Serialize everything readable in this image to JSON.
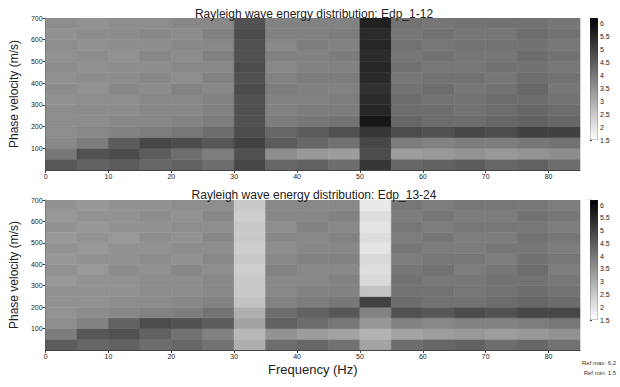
{
  "chart_data": [
    {
      "type": "heatmap",
      "title": "Rayleigh wave energy distribution: Edp_1-12",
      "ylabel": "Phase velocity (m/s)",
      "x_bins": [
        0,
        5,
        10,
        15,
        20,
        25,
        30,
        35,
        40,
        45,
        50,
        55,
        60,
        65,
        70,
        75,
        80,
        85
      ],
      "y_bins": [
        0,
        50,
        100,
        150,
        200,
        250,
        300,
        350,
        400,
        450,
        500,
        550,
        600,
        650,
        700
      ],
      "cells": [
        [
          4.6,
          4.4,
          4.5,
          4.3,
          4.4,
          4.2,
          4.9,
          4.3,
          4.4,
          4.2,
          5.2,
          4.3,
          4.4,
          4.5,
          4.3,
          4.4,
          4.2
        ],
        [
          4.0,
          4.7,
          4.8,
          4.5,
          4.2,
          3.9,
          4.7,
          3.6,
          3.4,
          3.3,
          4.8,
          3.3,
          3.4,
          3.5,
          3.4,
          3.5,
          3.6
        ],
        [
          3.7,
          3.9,
          4.5,
          4.9,
          4.8,
          4.6,
          5.0,
          4.5,
          4.3,
          4.1,
          4.9,
          3.9,
          3.8,
          3.9,
          3.9,
          4.0,
          4.1
        ],
        [
          3.6,
          3.7,
          3.8,
          3.9,
          4.0,
          4.2,
          4.8,
          4.3,
          4.5,
          4.7,
          5.2,
          4.8,
          4.7,
          4.9,
          4.8,
          5.0,
          5.0
        ],
        [
          3.6,
          3.6,
          3.7,
          3.7,
          3.8,
          3.9,
          4.7,
          3.9,
          4.0,
          4.1,
          5.8,
          4.3,
          4.2,
          4.2,
          4.3,
          4.4,
          4.3
        ],
        [
          3.6,
          3.6,
          3.6,
          3.7,
          3.7,
          3.8,
          4.7,
          3.8,
          3.9,
          3.9,
          5.5,
          4.2,
          4.2,
          4.1,
          4.2,
          4.3,
          4.2
        ],
        [
          3.5,
          3.6,
          3.6,
          3.7,
          3.7,
          3.8,
          4.7,
          3.8,
          3.8,
          3.9,
          5.4,
          4.2,
          4.1,
          4.1,
          4.2,
          4.2,
          4.1
        ],
        [
          3.6,
          3.5,
          3.7,
          3.6,
          3.8,
          3.7,
          4.8,
          3.9,
          3.8,
          3.8,
          5.3,
          4.1,
          4.2,
          4.0,
          4.1,
          4.3,
          4.0
        ],
        [
          3.5,
          3.6,
          3.6,
          3.7,
          3.6,
          3.8,
          4.7,
          3.8,
          3.9,
          3.9,
          5.4,
          4.0,
          4.1,
          4.1,
          4.0,
          4.2,
          4.1
        ],
        [
          3.6,
          3.5,
          3.6,
          3.6,
          3.7,
          3.7,
          4.8,
          3.7,
          3.8,
          3.8,
          5.5,
          4.1,
          4.0,
          4.0,
          4.1,
          4.1,
          4.0
        ],
        [
          3.5,
          3.6,
          3.5,
          3.7,
          3.6,
          3.8,
          4.7,
          3.8,
          3.8,
          3.9,
          5.4,
          4.0,
          4.1,
          4.0,
          4.0,
          4.2,
          4.1
        ],
        [
          3.6,
          3.5,
          3.6,
          3.6,
          3.7,
          3.7,
          4.7,
          3.7,
          3.9,
          3.8,
          5.5,
          4.1,
          4.0,
          4.1,
          4.1,
          4.1,
          4.0
        ],
        [
          3.5,
          3.6,
          3.6,
          3.7,
          3.6,
          3.8,
          4.8,
          3.8,
          3.8,
          3.9,
          5.4,
          4.0,
          4.1,
          4.0,
          4.0,
          4.2,
          4.1
        ],
        [
          3.6,
          3.5,
          3.6,
          3.6,
          3.7,
          3.7,
          4.7,
          3.8,
          3.8,
          3.8,
          5.6,
          4.1,
          4.0,
          4.1,
          4.1,
          4.1,
          4.0
        ]
      ],
      "xlim": [
        0,
        85
      ],
      "xticks": [
        0,
        10,
        20,
        30,
        40,
        50,
        60,
        70,
        80
      ],
      "ylim": [
        0,
        700
      ],
      "yticks": [
        100,
        200,
        300,
        400,
        500,
        600,
        700
      ],
      "colorbar_range": [
        1.5,
        6.2
      ],
      "colorbar_ticks": [
        1.5,
        2,
        2.5,
        3,
        3.5,
        4,
        4.5,
        5,
        5.5,
        6
      ],
      "grid": false
    },
    {
      "type": "heatmap",
      "title": "Rayleigh wave energy distribution: Edp_13-24",
      "xlabel": "Frequency (Hz)",
      "ylabel": "Phase velocity (m/s)",
      "x_bins": [
        0,
        5,
        10,
        15,
        20,
        25,
        30,
        35,
        40,
        45,
        50,
        55,
        60,
        65,
        70,
        75,
        80,
        85
      ],
      "y_bins": [
        0,
        50,
        100,
        150,
        200,
        250,
        300,
        350,
        400,
        450,
        500,
        550,
        600,
        650,
        700
      ],
      "cells": [
        [
          4.5,
          4.3,
          4.4,
          4.2,
          4.3,
          4.1,
          3.0,
          4.2,
          4.3,
          4.1,
          3.2,
          4.2,
          4.3,
          4.4,
          4.2,
          4.3,
          4.1
        ],
        [
          3.9,
          4.6,
          4.7,
          4.4,
          4.1,
          3.8,
          2.8,
          3.5,
          3.3,
          3.2,
          2.9,
          3.2,
          3.3,
          3.4,
          3.3,
          3.4,
          3.5
        ],
        [
          3.6,
          3.8,
          4.4,
          4.8,
          4.7,
          4.5,
          3.2,
          4.4,
          4.2,
          4.0,
          3.4,
          3.8,
          3.7,
          3.8,
          3.8,
          3.9,
          4.0
        ],
        [
          3.5,
          3.6,
          3.7,
          3.8,
          3.9,
          4.1,
          3.0,
          4.2,
          4.4,
          4.6,
          3.8,
          4.7,
          4.6,
          4.8,
          4.7,
          4.9,
          4.9
        ],
        [
          3.5,
          3.5,
          3.6,
          3.6,
          3.7,
          3.8,
          2.6,
          3.8,
          3.9,
          4.0,
          5.0,
          4.2,
          4.1,
          4.1,
          4.2,
          4.3,
          4.2
        ],
        [
          3.5,
          3.5,
          3.5,
          3.6,
          3.6,
          3.7,
          2.5,
          3.7,
          3.8,
          3.8,
          2.6,
          4.1,
          4.1,
          4.0,
          4.1,
          4.2,
          4.1
        ],
        [
          3.4,
          3.5,
          3.5,
          3.6,
          3.6,
          3.7,
          2.5,
          3.7,
          3.7,
          3.8,
          2.2,
          4.1,
          4.0,
          4.0,
          4.1,
          4.1,
          4.0
        ],
        [
          3.5,
          3.4,
          3.6,
          3.5,
          3.7,
          3.6,
          2.4,
          3.8,
          3.7,
          3.7,
          2.1,
          4.0,
          4.1,
          3.9,
          4.0,
          4.2,
          3.9
        ],
        [
          3.4,
          3.5,
          3.5,
          3.6,
          3.5,
          3.7,
          2.5,
          3.7,
          3.8,
          3.8,
          2.2,
          3.9,
          4.0,
          4.0,
          3.9,
          4.1,
          4.0
        ],
        [
          3.5,
          3.4,
          3.5,
          3.5,
          3.6,
          3.6,
          2.4,
          3.6,
          3.7,
          3.7,
          2.0,
          4.0,
          3.9,
          3.9,
          4.0,
          4.0,
          3.9
        ],
        [
          3.4,
          3.5,
          3.4,
          3.6,
          3.5,
          3.7,
          2.5,
          3.7,
          3.7,
          3.8,
          2.1,
          3.9,
          4.0,
          3.9,
          3.9,
          4.1,
          4.0
        ],
        [
          3.5,
          3.4,
          3.5,
          3.5,
          3.6,
          3.6,
          2.5,
          3.6,
          3.8,
          3.7,
          2.0,
          4.0,
          3.9,
          4.0,
          4.0,
          4.0,
          3.9
        ],
        [
          3.4,
          3.5,
          3.5,
          3.6,
          3.5,
          3.7,
          2.4,
          3.7,
          3.7,
          3.8,
          2.1,
          3.9,
          4.0,
          3.9,
          3.9,
          4.1,
          4.0
        ],
        [
          3.5,
          3.4,
          3.5,
          3.5,
          3.6,
          3.6,
          2.5,
          3.7,
          3.7,
          3.7,
          1.9,
          4.0,
          3.9,
          4.0,
          4.0,
          4.0,
          3.9
        ]
      ],
      "xlim": [
        0,
        85
      ],
      "xticks": [
        0,
        10,
        20,
        30,
        40,
        50,
        60,
        70,
        80
      ],
      "ylim": [
        0,
        700
      ],
      "yticks": [
        100,
        200,
        300,
        400,
        500,
        600,
        700
      ],
      "colorbar_range": [
        1.5,
        6.2
      ],
      "colorbar_ticks": [
        1.5,
        2,
        2.5,
        3,
        3.5,
        4,
        4.5,
        5,
        5.5,
        6
      ],
      "annotations": [
        "Ref max: 6.2",
        "Ref min: 1.5"
      ],
      "grid": false
    }
  ]
}
